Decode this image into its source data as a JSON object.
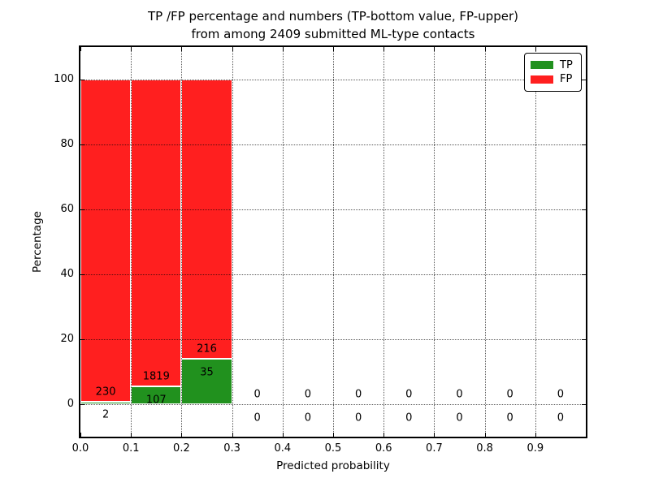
{
  "figure": {
    "title_line1": "TP /FP percentage and numbers (TP-bottom value, FP-upper)",
    "title_line2": "from among 2409 submitted ML-type contacts"
  },
  "axes": {
    "xlabel": "Predicted probability",
    "ylabel": "Percentage",
    "xlim": [
      0.0,
      1.0
    ],
    "ylim": [
      -10,
      110
    ],
    "grid": "dotted",
    "xticks": [
      {
        "value": 0.0,
        "label": "0.0"
      },
      {
        "value": 0.1,
        "label": "0.1"
      },
      {
        "value": 0.2,
        "label": "0.2"
      },
      {
        "value": 0.3,
        "label": "0.3"
      },
      {
        "value": 0.4,
        "label": "0.4"
      },
      {
        "value": 0.5,
        "label": "0.5"
      },
      {
        "value": 0.6,
        "label": "0.6"
      },
      {
        "value": 0.7,
        "label": "0.7"
      },
      {
        "value": 0.8,
        "label": "0.8"
      },
      {
        "value": 0.9,
        "label": "0.9"
      }
    ],
    "yticks": [
      {
        "value": 0,
        "label": "0"
      },
      {
        "value": 20,
        "label": "20"
      },
      {
        "value": 40,
        "label": "40"
      },
      {
        "value": 60,
        "label": "60"
      },
      {
        "value": 80,
        "label": "80"
      },
      {
        "value": 100,
        "label": "100"
      }
    ]
  },
  "legend": {
    "position": "upper right",
    "items": [
      {
        "label": "TP",
        "color": "#21911e"
      },
      {
        "label": "FP",
        "color": "#ff1f1f"
      }
    ]
  },
  "chart_data": {
    "type": "bar",
    "stacked": true,
    "units": "percent of bin total",
    "total_submitted": 2409,
    "colors": {
      "tp": "#21911e",
      "fp": "#ff1f1f"
    },
    "label_offsets": {
      "fp_label_y": 3.0,
      "tp_label_y": -4.2
    },
    "bins": [
      {
        "range": "0.0-0.1",
        "x0": 0.0,
        "x1": 0.1,
        "tp_count": 2,
        "fp_count": 230,
        "tp_pct": 0.86,
        "fp_pct": 99.14
      },
      {
        "range": "0.1-0.2",
        "x0": 0.1,
        "x1": 0.2,
        "tp_count": 107,
        "fp_count": 1819,
        "tp_pct": 5.56,
        "fp_pct": 94.44
      },
      {
        "range": "0.2-0.3",
        "x0": 0.2,
        "x1": 0.3,
        "tp_count": 35,
        "fp_count": 216,
        "tp_pct": 13.94,
        "fp_pct": 86.06
      },
      {
        "range": "0.3-0.4",
        "x0": 0.3,
        "x1": 0.4,
        "tp_count": 0,
        "fp_count": 0,
        "tp_pct": 0,
        "fp_pct": 0
      },
      {
        "range": "0.4-0.5",
        "x0": 0.4,
        "x1": 0.5,
        "tp_count": 0,
        "fp_count": 0,
        "tp_pct": 0,
        "fp_pct": 0
      },
      {
        "range": "0.5-0.6",
        "x0": 0.5,
        "x1": 0.6,
        "tp_count": 0,
        "fp_count": 0,
        "tp_pct": 0,
        "fp_pct": 0
      },
      {
        "range": "0.6-0.7",
        "x0": 0.6,
        "x1": 0.7,
        "tp_count": 0,
        "fp_count": 0,
        "tp_pct": 0,
        "fp_pct": 0
      },
      {
        "range": "0.7-0.8",
        "x0": 0.7,
        "x1": 0.8,
        "tp_count": 0,
        "fp_count": 0,
        "tp_pct": 0,
        "fp_pct": 0
      },
      {
        "range": "0.8-0.9",
        "x0": 0.8,
        "x1": 0.9,
        "tp_count": 0,
        "fp_count": 0,
        "tp_pct": 0,
        "fp_pct": 0
      },
      {
        "range": "0.9-1.0",
        "x0": 0.9,
        "x1": 1.0,
        "tp_count": 0,
        "fp_count": 0,
        "tp_pct": 0,
        "fp_pct": 0
      }
    ]
  }
}
